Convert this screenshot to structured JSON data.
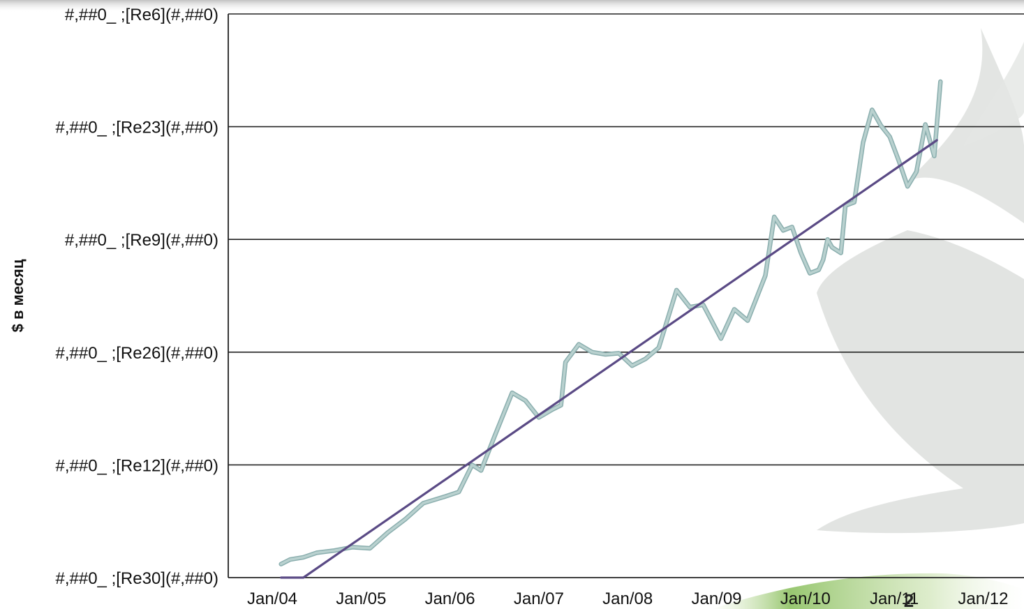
{
  "chart_data": {
    "type": "line",
    "ylabel": "$ в месяц",
    "xlabel": "",
    "title": "",
    "x_tick_labels": [
      "Jan/04",
      "Jan/05",
      "Jan/06",
      "Jan/07",
      "Jan/08",
      "Jan/09",
      "Jan/10",
      "Jan/11",
      "Jan/12"
    ],
    "y_tick_labels": [
      "#,##0_ ;[Re30](#,##0)",
      "#,##0_ ;[Re12](#,##0)",
      "#,##0_ ;[Re26](#,##0)",
      "#,##0_ ;[Re9](#,##0)",
      "#,##0_ ;[Re23](#,##0)",
      "#,##0_ ;[Re6](#,##0)"
    ],
    "ylim": [
      0,
      5
    ],
    "xlim": [
      2004.0,
      2012.0
    ],
    "grid": true,
    "series": [
      {
        "role": "data",
        "color": "#b9d1cf",
        "points": [
          [
            2004.1,
            0.12
          ],
          [
            2004.2,
            0.16
          ],
          [
            2004.35,
            0.18
          ],
          [
            2004.5,
            0.22
          ],
          [
            2004.7,
            0.24
          ],
          [
            2004.9,
            0.27
          ],
          [
            2005.1,
            0.26
          ],
          [
            2005.3,
            0.4
          ],
          [
            2005.5,
            0.52
          ],
          [
            2005.7,
            0.66
          ],
          [
            2005.95,
            0.72
          ],
          [
            2006.1,
            0.76
          ],
          [
            2006.25,
            1.0
          ],
          [
            2006.35,
            0.95
          ],
          [
            2006.5,
            1.25
          ],
          [
            2006.7,
            1.64
          ],
          [
            2006.85,
            1.57
          ],
          [
            2007.0,
            1.42
          ],
          [
            2007.15,
            1.49
          ],
          [
            2007.25,
            1.53
          ],
          [
            2007.3,
            1.91
          ],
          [
            2007.45,
            2.07
          ],
          [
            2007.6,
            2.0
          ],
          [
            2007.75,
            1.98
          ],
          [
            2007.9,
            1.99
          ],
          [
            2008.05,
            1.88
          ],
          [
            2008.2,
            1.94
          ],
          [
            2008.35,
            2.04
          ],
          [
            2008.55,
            2.55
          ],
          [
            2008.7,
            2.4
          ],
          [
            2008.85,
            2.42
          ],
          [
            2009.05,
            2.12
          ],
          [
            2009.2,
            2.38
          ],
          [
            2009.35,
            2.28
          ],
          [
            2009.55,
            2.68
          ],
          [
            2009.65,
            3.2
          ],
          [
            2009.75,
            3.08
          ],
          [
            2009.85,
            3.11
          ],
          [
            2009.95,
            2.88
          ],
          [
            2010.05,
            2.7
          ],
          [
            2010.15,
            2.73
          ],
          [
            2010.2,
            2.82
          ],
          [
            2010.25,
            3.0
          ],
          [
            2010.3,
            2.93
          ],
          [
            2010.4,
            2.88
          ],
          [
            2010.45,
            3.3
          ],
          [
            2010.55,
            3.33
          ],
          [
            2010.65,
            3.86
          ],
          [
            2010.75,
            4.15
          ],
          [
            2010.85,
            4.01
          ],
          [
            2010.95,
            3.91
          ],
          [
            2011.05,
            3.7
          ],
          [
            2011.15,
            3.47
          ],
          [
            2011.25,
            3.6
          ],
          [
            2011.35,
            4.02
          ],
          [
            2011.45,
            3.74
          ],
          [
            2011.52,
            4.4
          ]
        ]
      },
      {
        "role": "trend",
        "color": "#5a4a85",
        "points": [
          [
            2004.1,
            0.0
          ],
          [
            2004.35,
            0.0
          ],
          [
            2011.48,
            3.88
          ]
        ]
      }
    ]
  },
  "slide": {
    "number": "2"
  }
}
